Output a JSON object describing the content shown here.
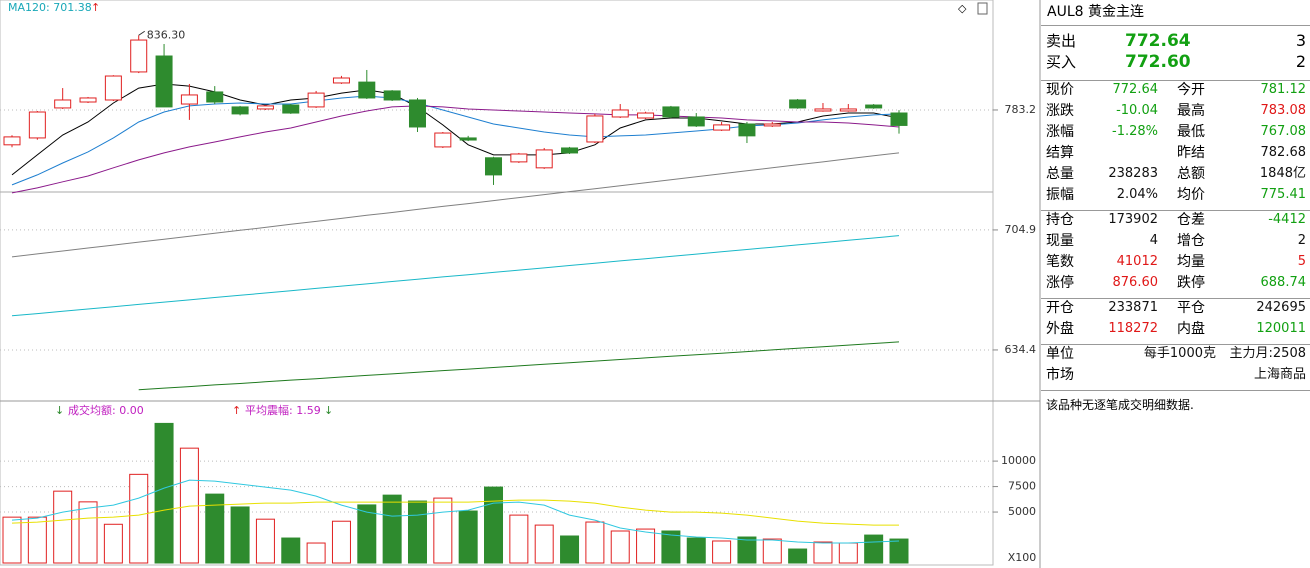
{
  "chart_data": [
    {
      "type": "candlestick",
      "ma_label": "MA120: 701.38",
      "log_scale": true,
      "grid": true,
      "up_color": "#e02020",
      "down_color": "#2e8b2e",
      "ylim": [
        611.4,
        862.6
      ],
      "yticks": [
        783.2,
        704.9,
        634.4
      ],
      "open": [
        759.6,
        764.2,
        784.6,
        788.7,
        790.1,
        809.8,
        821.2,
        787.3,
        795.7,
        785.3,
        783.9,
        786.6,
        785.3,
        802.0,
        802.6,
        796.4,
        790.1,
        758.2,
        764.2,
        751.0,
        748.3,
        744.4,
        757.5,
        761.5,
        778.4,
        777.7,
        785.3,
        778.4,
        769.5,
        773.6,
        772.3,
        790.1,
        782.5,
        782.5,
        786.6,
        781.12
      ],
      "high": [
        766.0,
        782.5,
        798.4,
        792.2,
        807.5,
        836.3,
        829.9,
        801.3,
        799.8,
        786.0,
        786.6,
        787.3,
        796.4,
        807.0,
        811.2,
        797.0,
        791.5,
        768.2,
        765.6,
        751.7,
        754.2,
        757.5,
        758.2,
        780.5,
        787.3,
        782.0,
        786.0,
        781.1,
        775.0,
        775.0,
        775.0,
        790.8,
        788.0,
        787.3,
        787.3,
        783.08
      ],
      "low": [
        758.0,
        763.0,
        783.9,
        788.0,
        789.4,
        809.0,
        785.3,
        776.4,
        787.3,
        779.5,
        783.2,
        780.5,
        784.6,
        801.3,
        790.8,
        789.4,
        768.2,
        757.5,
        762.1,
        733.3,
        747.6,
        743.7,
        753.5,
        760.8,
        777.7,
        777.0,
        777.7,
        771.6,
        768.9,
        760.8,
        771.6,
        784.0,
        782.0,
        782.0,
        784.0,
        767.08
      ],
      "close": [
        764.9,
        781.8,
        790.1,
        791.5,
        806.9,
        832.8,
        785.3,
        793.6,
        788.7,
        780.5,
        786.0,
        781.1,
        794.9,
        805.5,
        791.5,
        790.1,
        771.6,
        767.5,
        762.8,
        739.8,
        753.5,
        756.2,
        754.2,
        779.1,
        783.2,
        781.1,
        778.4,
        772.3,
        773.0,
        765.6,
        773.6,
        784.6,
        783.9,
        783.9,
        784.6,
        772.64
      ],
      "annotations": [
        {
          "value": 836.3,
          "label": "836.30"
        }
      ],
      "series": [
        {
          "color": "#000000",
          "values": [
            739.8,
            752.9,
            766.2,
            775.0,
            788.0,
            798.4,
            801.3,
            799.8,
            795.7,
            790.1,
            786.6,
            790.1,
            791.5,
            794.9,
            797.1,
            794.3,
            785.3,
            773.0,
            759.6,
            752.9,
            752.9,
            752.9,
            754.2,
            759.6,
            770.9,
            776.4,
            777.7,
            777.7,
            775.7,
            773.6,
            773.6,
            775.0,
            779.1,
            781.1,
            781.1,
            777.7
          ]
        },
        {
          "color": "#1e7fd0",
          "values": [
            733.3,
            739.8,
            747.6,
            754.9,
            764.2,
            775.0,
            781.8,
            786.0,
            787.3,
            788.0,
            787.3,
            787.3,
            789.4,
            791.5,
            792.9,
            791.5,
            788.0,
            783.2,
            778.4,
            773.6,
            770.9,
            768.2,
            766.2,
            764.9,
            765.6,
            766.2,
            767.5,
            768.9,
            770.3,
            772.3,
            773.0,
            774.3,
            776.4,
            778.4,
            779.8,
            780.5
          ]
        },
        {
          "color": "#8b1a8b",
          "values": [
            728.2,
            731.4,
            735.3,
            739.1,
            744.4,
            749.6,
            754.2,
            758.2,
            761.5,
            764.9,
            768.2,
            770.9,
            775.0,
            779.1,
            782.5,
            785.3,
            786.0,
            785.3,
            783.9,
            783.2,
            782.5,
            781.8,
            781.1,
            780.5,
            779.8,
            779.8,
            779.1,
            778.4,
            777.7,
            776.4,
            775.7,
            775.0,
            775.0,
            774.3,
            773.0,
            771.6
          ]
        },
        {
          "color": "#808080",
          "values": [
            688.4,
            690.2,
            692.0,
            693.8,
            695.6,
            697.4,
            699.2,
            701.0,
            702.9,
            704.7,
            706.5,
            708.4,
            710.2,
            712.1,
            714.0,
            715.8,
            717.7,
            719.6,
            721.4,
            723.3,
            725.2,
            727.1,
            729.0,
            730.9,
            732.8,
            734.7,
            736.7,
            738.6,
            740.5,
            742.5,
            744.4,
            746.4,
            748.3,
            750.3,
            752.3,
            754.2
          ]
        },
        {
          "color": "#19b8c8",
          "values": [
            653.7,
            655.0,
            656.3,
            657.6,
            658.9,
            660.3,
            661.6,
            662.9,
            664.3,
            665.6,
            666.9,
            668.3,
            669.6,
            671.0,
            672.3,
            673.7,
            675.0,
            676.4,
            677.7,
            679.1,
            680.5,
            681.8,
            683.2,
            684.6,
            686.0,
            687.3,
            688.7,
            690.1,
            691.5,
            692.9,
            694.3,
            695.7,
            697.1,
            698.5,
            699.9,
            701.38
          ]
        },
        {
          "color": "#1f7a1f",
          "values": [
            null,
            null,
            null,
            null,
            null,
            612.6,
            613.5,
            614.3,
            615.2,
            616.0,
            616.9,
            617.8,
            618.6,
            619.5,
            620.4,
            621.2,
            622.1,
            623.0,
            623.8,
            624.7,
            625.6,
            626.5,
            627.3,
            628.2,
            629.1,
            630.0,
            630.9,
            631.7,
            632.6,
            633.5,
            634.4,
            635.3,
            636.2,
            637.1,
            638.0,
            638.9
          ]
        }
      ]
    },
    {
      "type": "bar",
      "legend": [
        "成交均额: 0.00",
        "平均震幅: 1.59"
      ],
      "unit_label": "X100",
      "grid": true,
      "ylim": [
        0,
        15800
      ],
      "yticks": [
        10000,
        7500,
        5000
      ],
      "values": [
        4500,
        4500,
        7050,
        6000,
        3800,
        8700,
        13700,
        11270,
        6760,
        5500,
        4300,
        2450,
        1960,
        4100,
        5700,
        6660,
        6080,
        6370,
        5100,
        7450,
        4700,
        3720,
        2650,
        4020,
        3140,
        3330,
        3140,
        2450,
        2160,
        2550,
        2350,
        1370,
        2060,
        1960,
        2740,
        2350
      ],
      "series": [
        {
          "color": "#30c8e0",
          "values": [
            4214,
            4410,
            4998,
            5390,
            5684,
            6370,
            7350,
            8134,
            8036,
            7742,
            7448,
            7154,
            6566,
            5684,
            4998,
            4606,
            4704,
            4998,
            5194,
            5880,
            5978,
            5684,
            4704,
            4214,
            3430,
            3038,
            2744,
            2548,
            2450,
            2254,
            2254,
            2058,
            1960,
            1960,
            2058,
            2156
          ]
        },
        {
          "color": "#e8e000",
          "values": [
            3920,
            4018,
            4214,
            4410,
            4508,
            4704,
            5194,
            5586,
            5684,
            5782,
            5880,
            5880,
            5978,
            5978,
            5978,
            5978,
            5978,
            5978,
            5978,
            6076,
            6174,
            6174,
            6076,
            5880,
            5488,
            5194,
            4998,
            4998,
            4900,
            4704,
            4410,
            4116,
            3920,
            3822,
            3724,
            3724
          ]
        }
      ]
    }
  ],
  "quote_panel": {
    "title": "AUL8 黄金主连",
    "orders": [
      {
        "label": "卖出",
        "price": "772.64",
        "qty": "3",
        "color": "green"
      },
      {
        "label": "买入",
        "price": "772.60",
        "qty": "2",
        "color": "green"
      }
    ],
    "sections": [
      [
        [
          {
            "label": "现价",
            "value": "772.64",
            "color": "green"
          },
          {
            "label": "今开",
            "value": "781.12",
            "color": "green"
          }
        ],
        [
          {
            "label": "涨跌",
            "value": "-10.04",
            "color": "green"
          },
          {
            "label": "最高",
            "value": "783.08",
            "color": "red"
          }
        ],
        [
          {
            "label": "涨幅",
            "value": "-1.28%",
            "color": "green"
          },
          {
            "label": "最低",
            "value": "767.08",
            "color": "green"
          }
        ],
        [
          {
            "label": "结算"
          },
          {
            "label": "昨结",
            "value": "782.68",
            "color": "black"
          }
        ],
        [
          {
            "label": "总量",
            "value": "238283",
            "color": "black"
          },
          {
            "label": "总额",
            "value": "1848亿",
            "color": "black"
          }
        ],
        [
          {
            "label": "振幅",
            "value": "2.04%",
            "color": "black"
          },
          {
            "label": "均价",
            "value": "775.41",
            "color": "green"
          }
        ]
      ],
      [
        [
          {
            "label": "持仓",
            "value": "173902",
            "color": "black"
          },
          {
            "label": "仓差",
            "value": "-4412",
            "color": "green"
          }
        ],
        [
          {
            "label": "现量",
            "value": "4",
            "color": "black"
          },
          {
            "label": "增仓",
            "value": "2",
            "color": "black"
          }
        ],
        [
          {
            "label": "笔数",
            "value": "41012",
            "color": "red"
          },
          {
            "label": "均量",
            "value": "5",
            "color": "red"
          }
        ],
        [
          {
            "label": "涨停",
            "value": "876.60",
            "color": "red"
          },
          {
            "label": "跌停",
            "value": "688.74",
            "color": "green"
          }
        ]
      ],
      [
        [
          {
            "label": "开仓",
            "value": "233871",
            "color": "black"
          },
          {
            "label": "平仓",
            "value": "242695",
            "color": "black"
          }
        ],
        [
          {
            "label": "外盘",
            "value": "118272",
            "color": "red"
          },
          {
            "label": "内盘",
            "value": "120011",
            "color": "green"
          }
        ]
      ],
      [
        [
          {
            "label": "单位",
            "value": "每手1000克",
            "color": "black"
          },
          {
            "value": "主力月:2508",
            "color": "black"
          }
        ],
        [
          {
            "label": "市场",
            "value": "上海商品",
            "color": "black"
          }
        ]
      ]
    ],
    "note": "该品种无逐笔成交明细数据."
  }
}
